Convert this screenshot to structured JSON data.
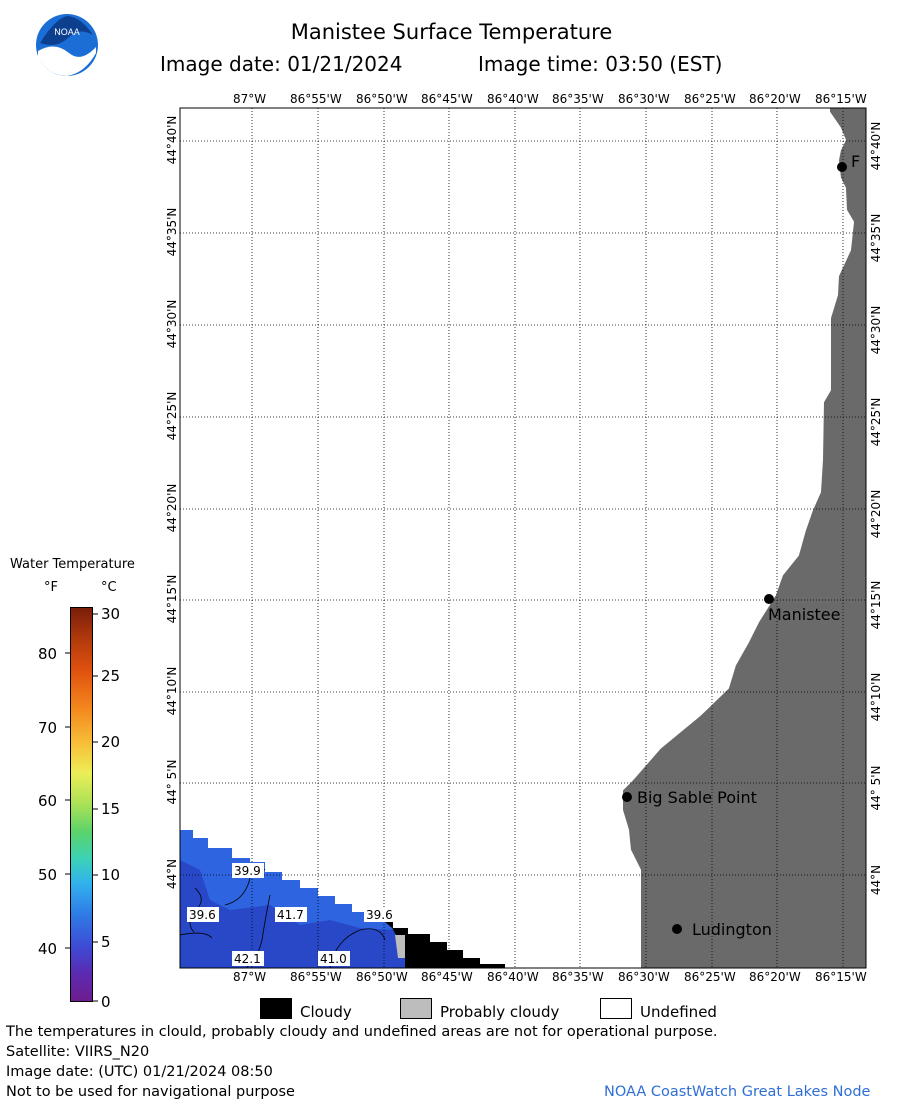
{
  "header": {
    "logo_text": "NOAA",
    "title": "Manistee Surface Temperature",
    "image_date_text": "Image date: 01/21/2024",
    "image_time_text": "Image time: 03:50 (EST)"
  },
  "map": {
    "lon_ticks": [
      "87°W",
      "86°55'W",
      "86°50'W",
      "86°45'W",
      "86°40'W",
      "86°35'W",
      "86°30'W",
      "86°25'W",
      "86°20'W",
      "86°15'W"
    ],
    "lat_ticks": [
      "44°40'N",
      "44°35'N",
      "44°30'N",
      "44°25'N",
      "44°20'N",
      "44°15'N",
      "44°10'N",
      "44° 5'N",
      "44°N"
    ],
    "places": [
      {
        "name": "F"
      },
      {
        "name": "Manistee"
      },
      {
        "name": "Big Sable Point"
      },
      {
        "name": "Ludington"
      }
    ],
    "temp_labels": [
      "39.9",
      "39.6",
      "41.7",
      "39.6",
      "42.1",
      "41.0"
    ],
    "colors": {
      "land": "#6a6a6a",
      "water_blue": "#2f64e0",
      "cloudy": "#000000",
      "probably_cloudy": "#bdbdbd",
      "grid": "#000000"
    }
  },
  "legend": {
    "title": "Water Temperature",
    "unit_f": "°F",
    "unit_c": "°C",
    "f_ticks": [
      "80",
      "70",
      "60",
      "50",
      "40"
    ],
    "c_ticks": [
      "30",
      "25",
      "20",
      "15",
      "10",
      "5",
      "0"
    ]
  },
  "cloud_legend": {
    "cloudy": "Cloudy",
    "probably_cloudy": "Probably cloudy",
    "undefined": "Undefined"
  },
  "footer": {
    "disclaimer": "The temperatures in clould, probably cloudy and undefined areas are not for operational purpose.",
    "satellite": "Satellite: VIIRS_N20",
    "utc_date": "Image date: (UTC) 01/21/2024  08:50",
    "nav_warning": "Not to be used for navigational purpose",
    "credit": "NOAA CoastWatch Great Lakes Node"
  }
}
